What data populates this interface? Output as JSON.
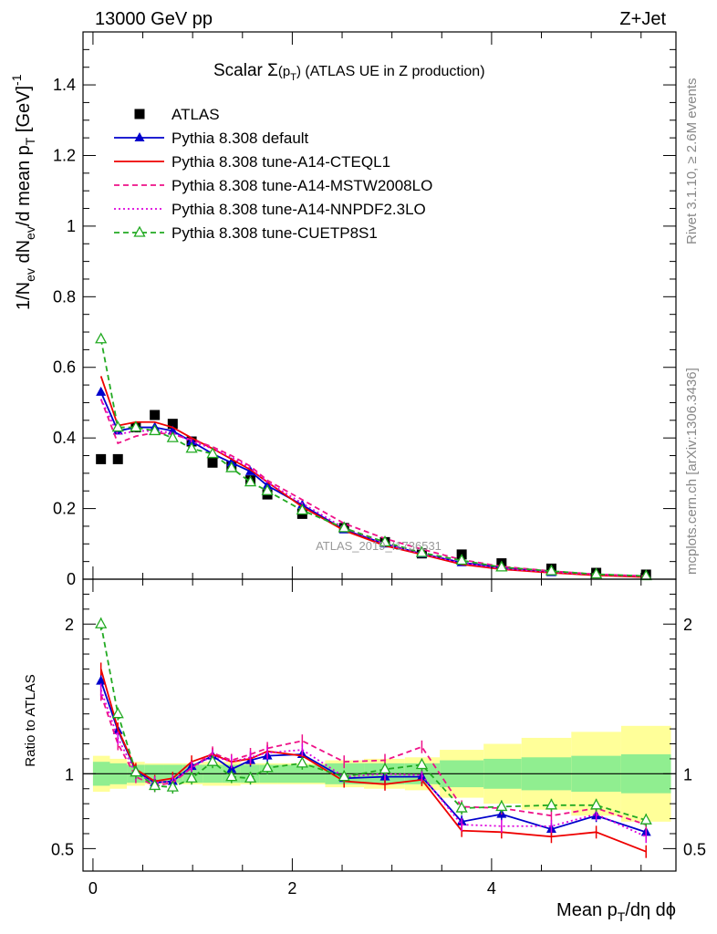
{
  "header": {
    "left": "13000 GeV pp",
    "right": "Z+Jet"
  },
  "side_labels": {
    "rivet": "Rivet 3.1.10, ≥ 2.6M events",
    "mcplots": "mcplots.cern.ch [arXiv:1306.3436]"
  },
  "chart_data": [
    {
      "type": "line",
      "title": "Scalar Σ(pT) (ATLAS UE in Z production)",
      "watermark": "ATLAS_2019_I1736531",
      "ylabel": "1/Nev dNev/d mean pT [GeV]-1",
      "xlim": [
        -0.1,
        5.85
      ],
      "ylim": [
        0,
        1.55
      ],
      "grid": false,
      "legend_position": "top-left",
      "x": [
        0.08,
        0.25,
        0.43,
        0.62,
        0.8,
        0.99,
        1.2,
        1.39,
        1.58,
        1.75,
        2.1,
        2.52,
        2.93,
        3.3,
        3.7,
        4.1,
        4.6,
        5.05,
        5.55
      ],
      "x_ticks": [
        0,
        2,
        4
      ],
      "y_ticks": [
        0,
        0.2,
        0.4,
        0.6,
        0.8,
        1,
        1.2,
        1.4
      ],
      "y_tick_labels": [
        "0",
        "0.2",
        "0.4",
        "0.6",
        "0.8",
        "1",
        "1.2",
        "1.4"
      ],
      "series": [
        {
          "name": "ATLAS",
          "style": "data",
          "color": "#000000",
          "marker": "square",
          "values": [
            0.34,
            0.34,
            0.43,
            0.465,
            0.44,
            0.39,
            0.33,
            0.32,
            0.28,
            0.24,
            0.185,
            0.145,
            0.105,
            0.073,
            0.07,
            0.045,
            0.03,
            0.018,
            0.013
          ]
        },
        {
          "name": "Pythia 8.308 default",
          "style": "solid",
          "color": "#0000cc",
          "marker": "triangle",
          "values": [
            0.53,
            0.42,
            0.43,
            0.43,
            0.42,
            0.39,
            0.355,
            0.33,
            0.305,
            0.265,
            0.21,
            0.14,
            0.1,
            0.072,
            0.047,
            0.033,
            0.019,
            0.013,
            0.008
          ]
        },
        {
          "name": "Pythia 8.308 tune-A14-CTEQL1",
          "style": "solid",
          "color": "#ee0000",
          "marker": "none",
          "values": [
            0.575,
            0.435,
            0.445,
            0.445,
            0.43,
            0.4,
            0.37,
            0.34,
            0.31,
            0.275,
            0.205,
            0.138,
            0.095,
            0.07,
            0.042,
            0.028,
            0.018,
            0.011,
            0.006
          ]
        },
        {
          "name": "Pythia 8.308 tune-A14-MSTW2008LO",
          "style": "dashed",
          "color": "#ee1188",
          "marker": "none",
          "values": [
            0.51,
            0.385,
            0.405,
            0.415,
            0.41,
            0.395,
            0.375,
            0.35,
            0.32,
            0.28,
            0.225,
            0.158,
            0.115,
            0.085,
            0.055,
            0.036,
            0.023,
            0.014,
            0.009
          ]
        },
        {
          "name": "Pythia 8.308 tune-A14-NNPDF2.3LO",
          "style": "dotted",
          "color": "#dd00dd",
          "marker": "none",
          "values": [
            0.51,
            0.41,
            0.42,
            0.42,
            0.415,
            0.39,
            0.37,
            0.345,
            0.315,
            0.275,
            0.215,
            0.145,
            0.1,
            0.072,
            0.046,
            0.03,
            0.02,
            0.013,
            0.008
          ]
        },
        {
          "name": "Pythia 8.308 tune-CUETP8S1",
          "style": "dashed",
          "color": "#22aa22",
          "marker": "open-triangle",
          "values": [
            0.68,
            0.43,
            0.43,
            0.42,
            0.4,
            0.37,
            0.355,
            0.315,
            0.275,
            0.25,
            0.195,
            0.145,
            0.105,
            0.075,
            0.053,
            0.034,
            0.023,
            0.014,
            0.009
          ]
        }
      ]
    },
    {
      "type": "line",
      "title": "",
      "xlabel": "Mean pT/dη dϕ",
      "ylabel": "Ratio to ATLAS",
      "ylim": [
        0.35,
        2.3
      ],
      "y_ticks": [
        0.5,
        1,
        2
      ],
      "y_tick_labels": [
        "0.5",
        "1",
        "2"
      ],
      "x_ticks": [
        0,
        2,
        4
      ],
      "x_tick_labels": [
        "0",
        "2",
        "4"
      ],
      "reference": 1,
      "uncertainty_bands": {
        "edges": [
          0,
          0.17,
          0.34,
          0.52,
          0.71,
          0.9,
          1.1,
          1.3,
          1.48,
          1.67,
          1.85,
          2.33,
          2.72,
          3.13,
          3.48,
          3.92,
          4.3,
          4.8,
          5.3,
          5.8
        ],
        "stat_color": "#90ee90",
        "syst_color": "#ffff99",
        "stat_half_width": [
          0.08,
          0.07,
          0.06,
          0.06,
          0.06,
          0.06,
          0.06,
          0.06,
          0.06,
          0.06,
          0.06,
          0.07,
          0.07,
          0.07,
          0.09,
          0.1,
          0.11,
          0.12,
          0.13
        ],
        "total_half_width": [
          0.12,
          0.1,
          0.08,
          0.07,
          0.07,
          0.07,
          0.08,
          0.08,
          0.07,
          0.07,
          0.07,
          0.09,
          0.1,
          0.11,
          0.16,
          0.2,
          0.24,
          0.28,
          0.32
        ]
      },
      "series": [
        {
          "name": "Pythia 8.308 default",
          "color": "#0000cc",
          "style": "solid",
          "marker": "triangle",
          "values": [
            1.62,
            1.29,
            1.02,
            0.94,
            0.95,
            1.05,
            1.12,
            1.03,
            1.09,
            1.12,
            1.13,
            0.97,
            0.98,
            0.98,
            0.68,
            0.73,
            0.63,
            0.72,
            0.61
          ]
        },
        {
          "name": "Pythia 8.308 tune-A14-CTEQL1",
          "color": "#ee0000",
          "style": "solid",
          "marker": "none",
          "values": [
            1.7,
            1.3,
            1.03,
            0.95,
            0.97,
            1.08,
            1.13,
            1.08,
            1.1,
            1.15,
            1.12,
            0.95,
            0.93,
            0.96,
            0.62,
            0.61,
            0.58,
            0.61,
            0.48
          ]
        },
        {
          "name": "Pythia 8.308 tune-A14-MSTW2008LO",
          "color": "#ee1188",
          "style": "dashed",
          "marker": "none",
          "values": [
            1.53,
            1.2,
            0.98,
            0.92,
            0.94,
            1.04,
            1.14,
            1.09,
            1.13,
            1.17,
            1.22,
            1.08,
            1.09,
            1.18,
            0.78,
            0.77,
            0.72,
            0.77,
            0.66
          ]
        },
        {
          "name": "Pythia 8.308 tune-A14-NNPDF2.3LO",
          "color": "#dd00dd",
          "style": "dotted",
          "marker": "none",
          "values": [
            1.56,
            1.24,
            1.0,
            0.94,
            0.95,
            1.04,
            1.12,
            1.08,
            1.11,
            1.14,
            1.16,
            0.98,
            1.0,
            0.99,
            0.66,
            0.65,
            0.65,
            0.73,
            0.58
          ]
        },
        {
          "name": "Pythia 8.308 tune-CUETP8S1",
          "color": "#22aa22",
          "style": "dashed",
          "marker": "open-triangle",
          "values": [
            2.0,
            1.4,
            1.01,
            0.92,
            0.91,
            0.97,
            1.08,
            0.98,
            0.97,
            1.04,
            1.07,
            0.98,
            1.03,
            1.06,
            0.77,
            0.78,
            0.79,
            0.79,
            0.69
          ]
        }
      ]
    }
  ]
}
